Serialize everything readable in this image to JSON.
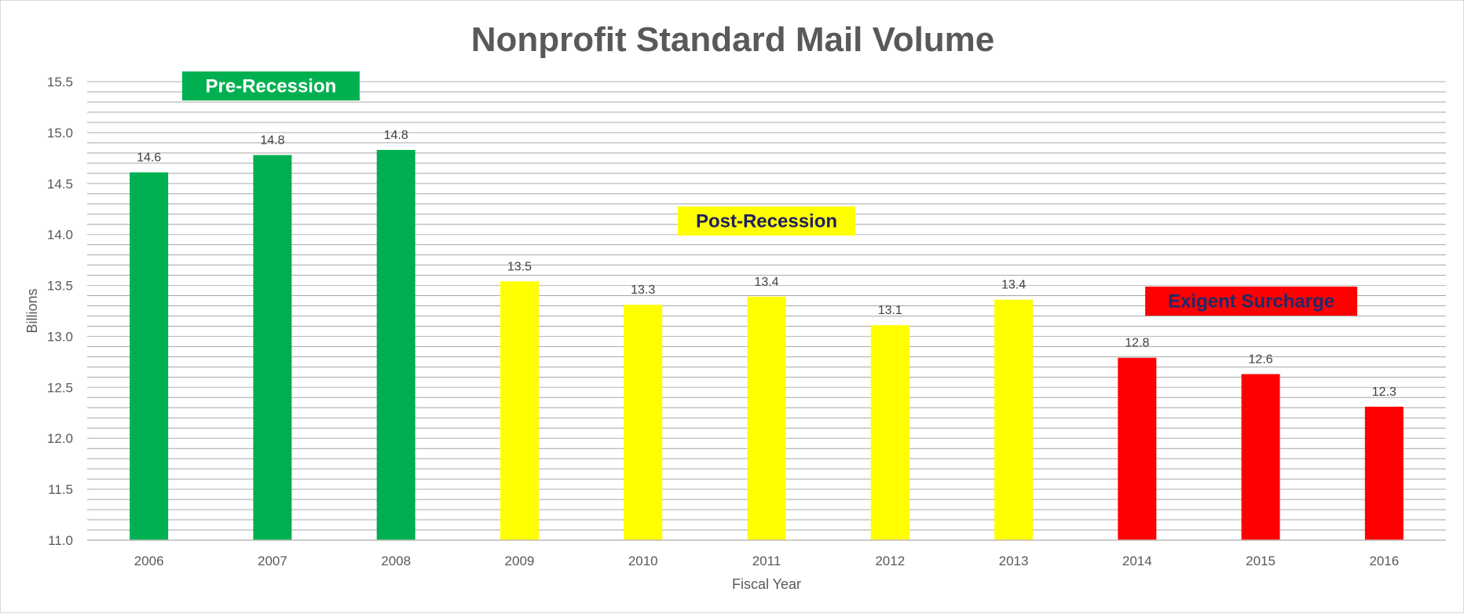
{
  "chart_data": {
    "type": "bar",
    "title": "Nonprofit Standard Mail Volume",
    "xlabel": "Fiscal Year",
    "ylabel": "Billions",
    "ylim": [
      11.0,
      15.5
    ],
    "yticks": [
      "11.0",
      "11.5",
      "12.0",
      "12.5",
      "13.0",
      "13.5",
      "14.0",
      "14.5",
      "15.0",
      "15.5"
    ],
    "grid": true,
    "categories": [
      "2006",
      "2007",
      "2008",
      "2009",
      "2010",
      "2011",
      "2012",
      "2013",
      "2014",
      "2015",
      "2016"
    ],
    "values": [
      14.61,
      14.78,
      14.83,
      13.54,
      13.31,
      13.39,
      13.11,
      13.36,
      12.79,
      12.63,
      12.31
    ],
    "data_labels": [
      "14.6",
      "14.8",
      "14.8",
      "13.5",
      "13.3",
      "13.4",
      "13.1",
      "13.4",
      "12.8",
      "12.6",
      "12.3"
    ],
    "bar_colors": [
      "#00b050",
      "#00b050",
      "#00b050",
      "#ffff00",
      "#ffff00",
      "#ffff00",
      "#ffff00",
      "#ffff00",
      "#ff0000",
      "#ff0000",
      "#ff0000"
    ],
    "annotations": [
      {
        "text": "Pre-Recession",
        "background": "#00b050",
        "color": "#ffffff"
      },
      {
        "text": "Post-Recession",
        "background": "#ffff00",
        "color": "#1f1f5f"
      },
      {
        "text": "Exigent Surcharge",
        "background": "#ff0000",
        "color": "#1f2a6b"
      }
    ]
  }
}
